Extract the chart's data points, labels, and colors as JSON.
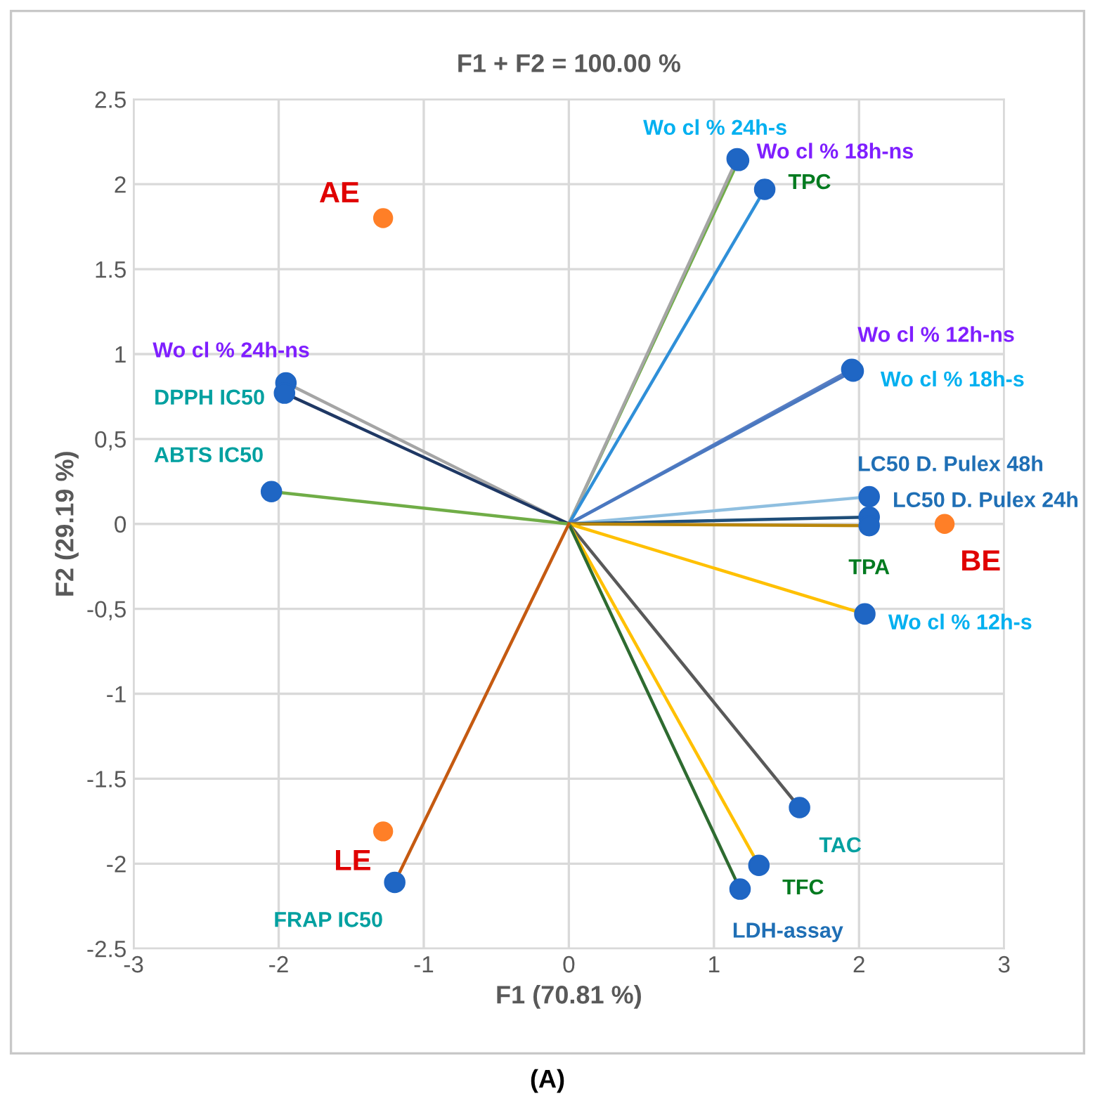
{
  "chart_data": {
    "type": "line",
    "title": "F1 + F2 = 100.00 %",
    "xlabel": "F1 (70.81 %)",
    "ylabel": "F2 (29.19 %)",
    "xlim": [
      -3,
      3
    ],
    "ylim": [
      -2.5,
      2.5
    ],
    "xticks": [
      -3,
      -2,
      -1,
      0,
      1,
      2,
      3
    ],
    "yticks": [
      {
        "value": 2.5,
        "label": "2.5"
      },
      2,
      {
        "value": 1.5,
        "label": "1.5"
      },
      1,
      {
        "value": 0.5,
        "label": "0,5"
      },
      0,
      {
        "value": -0.5,
        "label": "-0,5"
      },
      -1,
      {
        "value": -1.5,
        "label": "-1.5"
      },
      -2,
      {
        "value": -2.5,
        "label": "-2.5"
      }
    ],
    "grid": true,
    "marker": "circle",
    "annotations": [
      "(A)"
    ],
    "series": [
      {
        "name": "Wo cl % 24h-s",
        "color": "#70ad47",
        "x": [
          0,
          1.17
        ],
        "values": [
          0,
          2.14
        ]
      },
      {
        "name": "Wo cl % 18h-ns",
        "color": "#a5a5a5",
        "x": [
          0,
          1.16
        ],
        "values": [
          0,
          2.15
        ]
      },
      {
        "name": "TPC",
        "color": "#2f8fd8",
        "x": [
          0,
          1.35
        ],
        "values": [
          0,
          1.97
        ]
      },
      {
        "name": "Wo cl % 12h-ns",
        "color": "#5a7fc4",
        "x": [
          0,
          1.95
        ],
        "values": [
          0,
          0.91
        ]
      },
      {
        "name": "Wo cl % 18h-s",
        "color": "#4a78c0",
        "x": [
          0,
          1.96
        ],
        "values": [
          0,
          0.9
        ]
      },
      {
        "name": "LC50 D. Pulex 48h",
        "color": "#8fbfe0",
        "x": [
          0,
          2.07
        ],
        "values": [
          0,
          0.16
        ]
      },
      {
        "name": "LC50 D. Pulex 24h",
        "color": "#1f4e79",
        "x": [
          0,
          2.07
        ],
        "values": [
          0,
          0.04
        ]
      },
      {
        "name": "TPA",
        "color": "#b8860b",
        "x": [
          0,
          2.07
        ],
        "values": [
          0,
          -0.01
        ]
      },
      {
        "name": "Wo cl % 12h-s",
        "color": "#ffc000",
        "x": [
          0,
          2.04
        ],
        "values": [
          0,
          -0.53
        ]
      },
      {
        "name": "TAC",
        "color": "#595959",
        "x": [
          0,
          1.59
        ],
        "values": [
          0,
          -1.67
        ]
      },
      {
        "name": "TFC",
        "color": "#ffc000",
        "x": [
          0,
          1.31
        ],
        "values": [
          0,
          -2.01
        ]
      },
      {
        "name": "LDH-assay",
        "color": "#2e6b30",
        "x": [
          0,
          1.18
        ],
        "values": [
          0,
          -2.15
        ]
      },
      {
        "name": "Wo cl % 24h-ns",
        "color": "#a5a5a5",
        "x": [
          0,
          -1.95
        ],
        "values": [
          0,
          0.83
        ]
      },
      {
        "name": "DPPH IC50",
        "color": "#1f3864",
        "x": [
          0,
          -1.96
        ],
        "values": [
          0,
          0.77
        ]
      },
      {
        "name": "ABTS IC50",
        "color": "#70ad47",
        "x": [
          0,
          -2.05
        ],
        "values": [
          0,
          0.19
        ]
      },
      {
        "name": "FRAP IC50",
        "color": "#c55a11",
        "x": [
          0,
          -1.2
        ],
        "values": [
          0,
          -2.11
        ]
      },
      {
        "name": "AE",
        "type": "scatter",
        "color": "#ff7f27",
        "x": [
          -1.28
        ],
        "values": [
          1.8
        ]
      },
      {
        "name": "BE",
        "type": "scatter",
        "color": "#ff7f27",
        "x": [
          2.59
        ],
        "values": [
          0.0
        ]
      },
      {
        "name": "LE",
        "type": "scatter",
        "color": "#ff7f27",
        "x": [
          -1.28
        ],
        "values": [
          -1.81
        ]
      }
    ]
  }
}
